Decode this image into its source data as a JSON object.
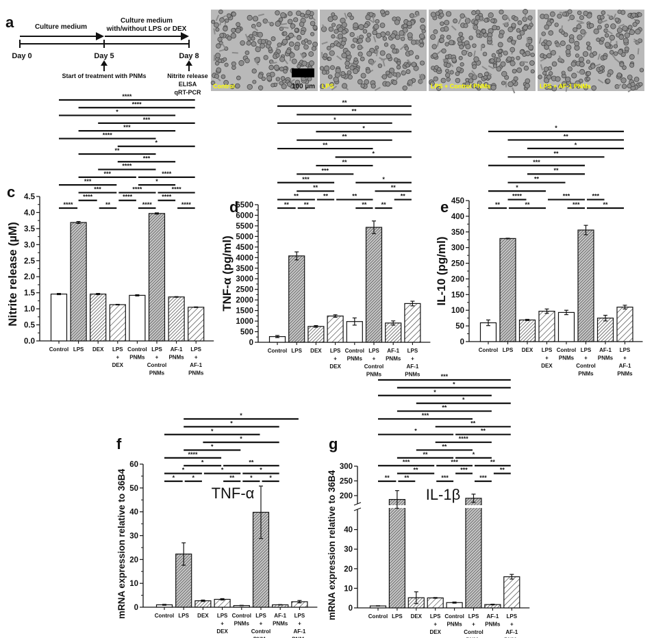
{
  "panel_a": {
    "letter": "a",
    "segment1_label": "Culture medium",
    "segment2_label_line1": "Culture medium",
    "segment2_label_line2": "with/without LPS or DEX",
    "day0": "Day 0",
    "day5": "Day 5",
    "day8": "Day 8",
    "day5_note": "Start of treatment with PNMs",
    "day8_notes": [
      "Nitrite release",
      "ELISA",
      "qRT-PCR"
    ],
    "micrographs": [
      "Control",
      "LPS",
      "LPS + Control PNMs",
      "LPS + AF-1 PNMs"
    ],
    "scale_bar_label": "100 µm",
    "label_color": "#ffff00"
  },
  "categories": [
    [
      "Control"
    ],
    [
      "LPS"
    ],
    [
      "DEX"
    ],
    [
      "LPS",
      "+",
      "DEX"
    ],
    [
      "Control",
      "PNMs"
    ],
    [
      "LPS",
      "+",
      "Control",
      "PNMs"
    ],
    [
      "AF-1",
      "PNMs"
    ],
    [
      "LPS",
      "+",
      "AF-1",
      "PNMs"
    ]
  ],
  "chart_data": [
    {
      "id": "c",
      "letter": "c",
      "type": "bar",
      "title": "",
      "xlabel": "",
      "ylabel": "Nitrite release (µM)",
      "ylim": [
        0,
        4.5
      ],
      "yticks": [
        "0.0",
        "0.5",
        "1.0",
        "1.5",
        "2.0",
        "2.5",
        "3.0",
        "3.5",
        "4.0",
        "4.5"
      ],
      "values": [
        1.46,
        3.69,
        1.46,
        1.13,
        1.42,
        3.97,
        1.37,
        1.05
      ],
      "errors": [
        0.02,
        0.03,
        0.02,
        0.01,
        0.02,
        0.02,
        0.01,
        0.01
      ],
      "significance": [
        [
          [
            0,
            7,
            "****"
          ]
        ],
        [
          [
            1,
            7,
            "****"
          ]
        ],
        [
          [
            0,
            6,
            "*"
          ]
        ],
        [
          [
            2,
            7,
            "***"
          ]
        ],
        [
          [
            1,
            6,
            "***"
          ]
        ],
        [
          [
            0,
            5,
            "****"
          ]
        ],
        [
          [
            3,
            7,
            "*"
          ]
        ],
        [
          [
            1,
            5,
            "**"
          ]
        ],
        [
          [
            3,
            6,
            "***"
          ]
        ],
        [
          [
            2,
            5,
            "****"
          ]
        ],
        [
          [
            1,
            4,
            "***"
          ],
          [
            4,
            7,
            "****"
          ]
        ],
        [
          [
            0,
            3,
            "***"
          ],
          [
            4,
            6,
            "*"
          ]
        ],
        [
          [
            1,
            3,
            "***"
          ],
          [
            3,
            5,
            "****"
          ],
          [
            5,
            7,
            "****"
          ]
        ],
        [
          [
            1,
            2,
            "****"
          ],
          [
            3,
            4,
            "****"
          ],
          [
            5,
            6,
            "****"
          ]
        ],
        [
          [
            0,
            1,
            "****"
          ],
          [
            2,
            3,
            "**"
          ],
          [
            4,
            5,
            "****"
          ],
          [
            6,
            7,
            "****"
          ]
        ]
      ]
    },
    {
      "id": "d",
      "letter": "d",
      "type": "bar",
      "title": "",
      "xlabel": "",
      "ylabel": "TNF-α (pg/ml)",
      "ylim": [
        0,
        6500
      ],
      "yticks": [
        "0",
        "500",
        "1000",
        "1500",
        "2000",
        "2500",
        "3000",
        "3500",
        "4000",
        "4500",
        "5000",
        "5500",
        "6000",
        "6500"
      ],
      "values": [
        270,
        4080,
        750,
        1240,
        980,
        5430,
        910,
        1830
      ],
      "errors": [
        50,
        190,
        40,
        60,
        170,
        300,
        100,
        110
      ],
      "significance": [
        [
          [
            0,
            7,
            "**"
          ]
        ],
        [
          [
            1,
            7,
            "**"
          ]
        ],
        [
          [
            0,
            6,
            "*"
          ]
        ],
        [
          [
            2,
            7,
            "*"
          ]
        ],
        [
          [
            1,
            6,
            "**"
          ]
        ],
        [
          [
            0,
            5,
            "**"
          ]
        ],
        [
          [
            3,
            7,
            "*"
          ]
        ],
        [
          [
            2,
            5,
            "**"
          ]
        ],
        [
          [
            1,
            4,
            "***"
          ]
        ],
        [
          [
            0,
            3,
            "***"
          ],
          [
            4,
            7,
            "*"
          ]
        ],
        [
          [
            1,
            3,
            "**"
          ],
          [
            5,
            7,
            "**"
          ]
        ],
        [
          [
            0,
            2,
            "**"
          ],
          [
            2,
            3,
            "**"
          ],
          [
            3,
            5,
            "**"
          ],
          [
            6,
            7,
            "**"
          ]
        ],
        [
          [
            0,
            1,
            "**"
          ],
          [
            1,
            2,
            "**"
          ],
          [
            4,
            5,
            "**"
          ],
          [
            5,
            6,
            "**"
          ]
        ]
      ]
    },
    {
      "id": "e",
      "letter": "e",
      "type": "bar",
      "title": "",
      "xlabel": "",
      "ylabel": "IL-10 (pg/ml)",
      "ylim": [
        0,
        450
      ],
      "yticks": [
        "0",
        "50",
        "100",
        "150",
        "200",
        "250",
        "300",
        "350",
        "400",
        "450"
      ],
      "values": [
        60,
        329,
        69,
        97,
        93,
        356,
        75,
        110
      ],
      "errors": [
        9,
        1,
        2,
        7,
        7,
        15,
        9,
        6
      ],
      "significance": [
        [
          [
            0,
            7,
            "*"
          ]
        ],
        [
          [
            1,
            7,
            "**"
          ]
        ],
        [
          [
            2,
            7,
            "*"
          ]
        ],
        [
          [
            1,
            6,
            "**"
          ]
        ],
        [
          [
            0,
            5,
            "***"
          ]
        ],
        [
          [
            2,
            5,
            "**"
          ]
        ],
        [
          [
            1,
            4,
            "**"
          ]
        ],
        [
          [
            0,
            3,
            "*"
          ]
        ],
        [
          [
            1,
            2,
            "****"
          ],
          [
            3,
            5,
            "***"
          ],
          [
            5,
            6,
            "***"
          ]
        ],
        [
          [
            0,
            1,
            "**"
          ],
          [
            1,
            3,
            "**"
          ],
          [
            4,
            5,
            "***"
          ],
          [
            5,
            7,
            "**"
          ]
        ]
      ]
    },
    {
      "id": "f",
      "letter": "f",
      "type": "bar",
      "title": "TNF-α",
      "xlabel": "",
      "ylabel": "mRNA expression relative to 36B4",
      "ylim": [
        0,
        60
      ],
      "yticks": [
        "0",
        "10",
        "20",
        "30",
        "40",
        "50",
        "60"
      ],
      "values": [
        1.0,
        22.3,
        2.7,
        3.3,
        0.7,
        39.8,
        1.0,
        2.3
      ],
      "errors": [
        0.2,
        4.7,
        0.3,
        0.3,
        0.1,
        11.0,
        0.1,
        0.5
      ],
      "significance": [
        [
          [
            1,
            7,
            "*"
          ]
        ],
        [
          [
            1,
            6,
            "*"
          ]
        ],
        [
          [
            0,
            5,
            "*"
          ]
        ],
        [
          [
            2,
            6,
            "*"
          ]
        ],
        [
          [
            1,
            4,
            "*"
          ]
        ],
        [
          [
            0,
            3,
            "****"
          ]
        ],
        [
          [
            1,
            3,
            "*"
          ],
          [
            3,
            6,
            "**"
          ]
        ],
        [
          [
            0,
            2,
            "*"
          ],
          [
            2,
            4,
            "*"
          ],
          [
            4,
            6,
            "*"
          ]
        ],
        [
          [
            0,
            1,
            "*"
          ],
          [
            1,
            2,
            "*"
          ],
          [
            3,
            4,
            "**"
          ],
          [
            4,
            5,
            "*"
          ],
          [
            5,
            6,
            "*"
          ]
        ]
      ]
    },
    {
      "id": "g",
      "letter": "g",
      "type": "bar",
      "title": "IL-1β",
      "xlabel": "",
      "ylabel": "mRNA expression relative to 36B4",
      "ylim": [
        0,
        300
      ],
      "axis_break": [
        50,
        150
      ],
      "yticks_lower": [
        "0",
        "10",
        "20",
        "30",
        "40"
      ],
      "yticks_upper": [
        "200",
        "250",
        "300"
      ],
      "values": [
        1.0,
        187,
        5.2,
        5.1,
        2.7,
        191,
        1.7,
        15.9
      ],
      "errors": [
        0.1,
        30,
        3.0,
        0.2,
        0.3,
        14,
        0.2,
        1.2
      ],
      "significance": [
        [
          [
            0,
            7,
            "***"
          ]
        ],
        [
          [
            1,
            7,
            "*"
          ]
        ],
        [
          [
            0,
            6,
            "*"
          ]
        ],
        [
          [
            2,
            7,
            "*"
          ]
        ],
        [
          [
            1,
            6,
            "**"
          ]
        ],
        [
          [
            0,
            5,
            "***"
          ]
        ],
        [
          [
            3,
            7,
            "**"
          ]
        ],
        [
          [
            0,
            4,
            "*"
          ],
          [
            4,
            7,
            "**"
          ]
        ],
        [
          [
            3,
            6,
            "****"
          ]
        ],
        [
          [
            2,
            5,
            "**"
          ]
        ],
        [
          [
            1,
            4,
            "**"
          ],
          [
            4,
            6,
            "*"
          ]
        ],
        [
          [
            0,
            3,
            "***"
          ],
          [
            3,
            5,
            "***"
          ],
          [
            5,
            7,
            "**"
          ]
        ],
        [
          [
            1,
            3,
            "**"
          ],
          [
            4,
            5,
            "***"
          ],
          [
            6,
            7,
            "**"
          ]
        ],
        [
          [
            0,
            1,
            "**"
          ],
          [
            1,
            2,
            "**"
          ],
          [
            3,
            4,
            "***"
          ],
          [
            5,
            6,
            "***"
          ]
        ]
      ]
    }
  ]
}
